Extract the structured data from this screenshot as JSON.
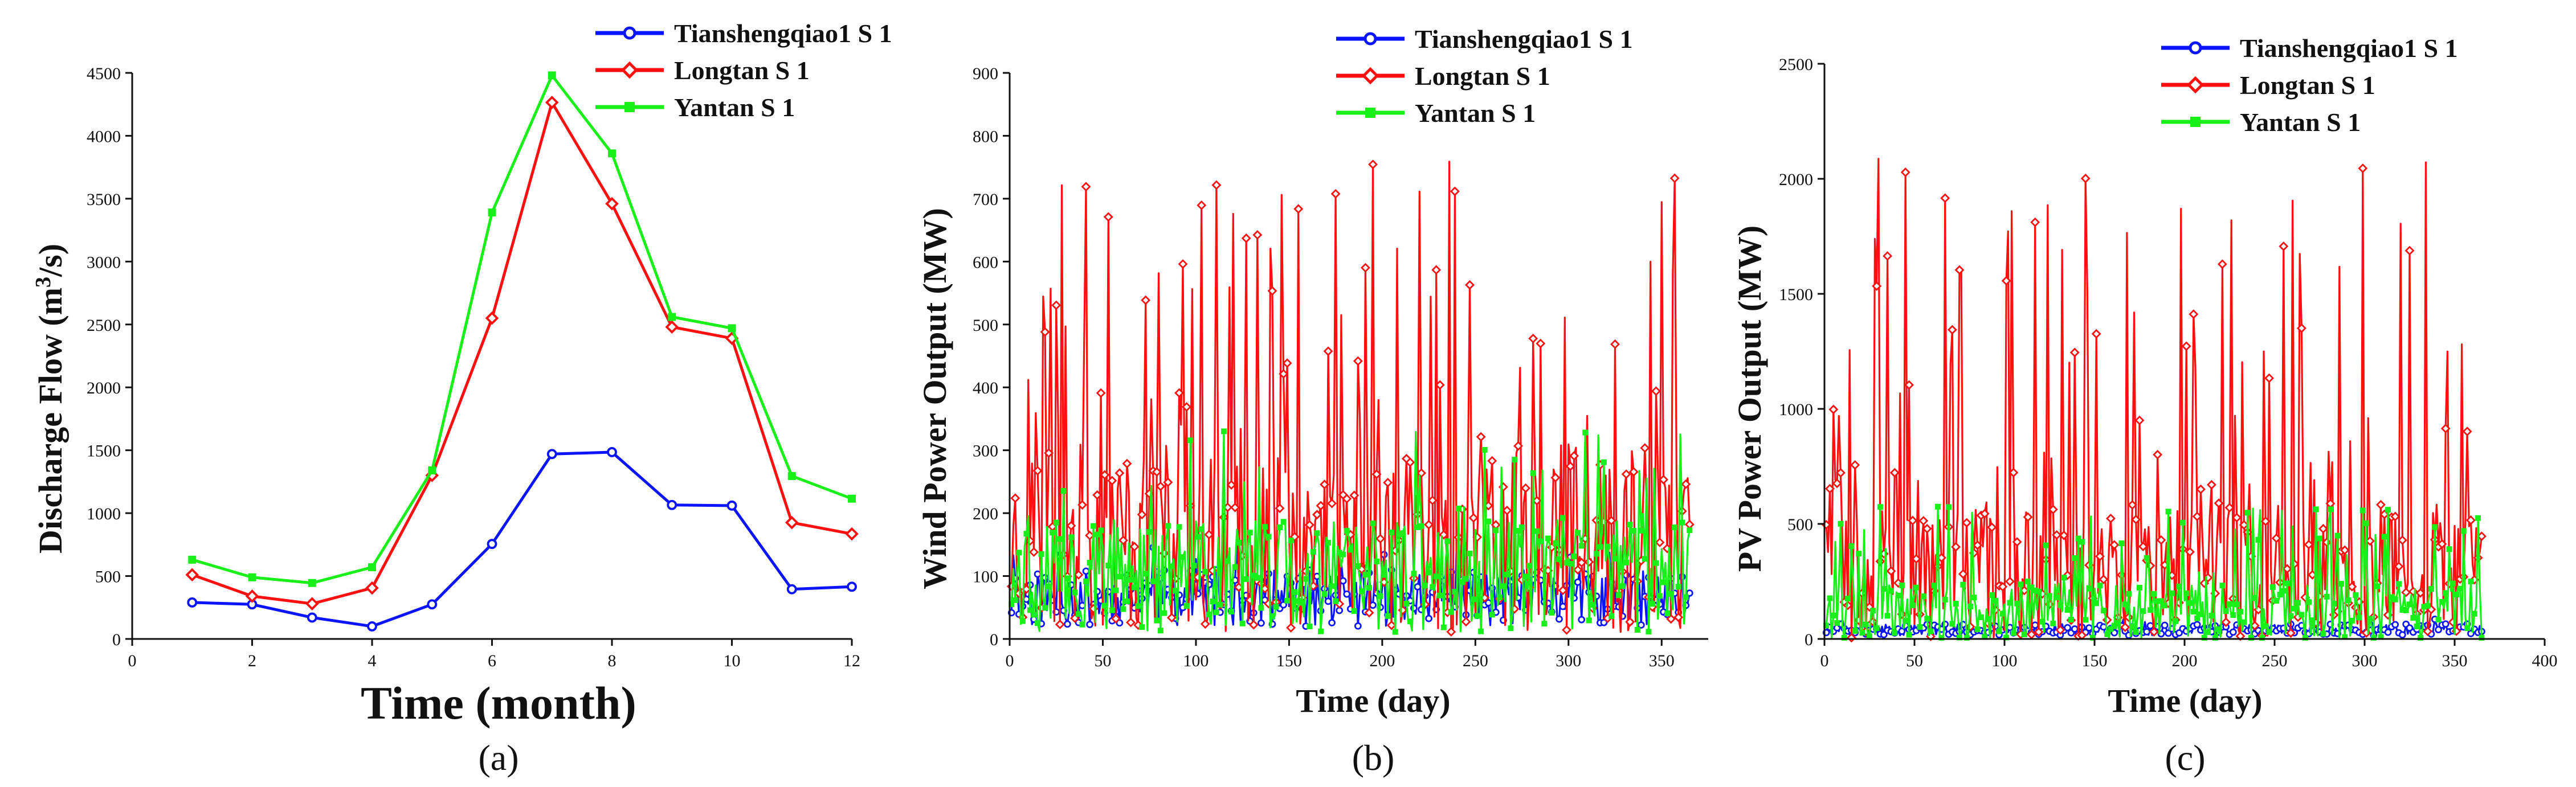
{
  "colors": {
    "tianshengqiao": "#0a14ff",
    "longtan": "#ff0f0f",
    "yantan": "#19f019",
    "axis": "#111111"
  },
  "chart_data": [
    {
      "type": "line",
      "panel_label": "(a)",
      "xlabel": "Time (month)",
      "ylabel_main": "Discharge Flow (m",
      "ylabel_sup": "3",
      "ylabel_end": "/s)",
      "xlim": [
        0,
        12
      ],
      "ylim": [
        0,
        4500
      ],
      "xticks": [
        0,
        2,
        4,
        6,
        8,
        10,
        12
      ],
      "yticks": [
        0,
        500,
        1000,
        1500,
        2000,
        2500,
        3000,
        3500,
        4000,
        4500
      ],
      "x": [
        1,
        2,
        3,
        4,
        5,
        6,
        7,
        8,
        9,
        10,
        11,
        12
      ],
      "series": [
        {
          "name": "Tianshengqiao1 S 1",
          "color": "#0a14ff",
          "marker": "circle",
          "values": [
            290,
            275,
            170,
            100,
            275,
            755,
            1470,
            1485,
            1065,
            1060,
            395,
            415
          ]
        },
        {
          "name": "Longtan S 1",
          "color": "#ff0f0f",
          "marker": "diamond",
          "values": [
            510,
            340,
            280,
            405,
            1300,
            2550,
            4265,
            3460,
            2480,
            2390,
            925,
            835
          ]
        },
        {
          "name": "Yantan S 1",
          "color": "#19f019",
          "marker": "square",
          "values": [
            630,
            490,
            445,
            570,
            1340,
            3390,
            4480,
            3860,
            2560,
            2470,
            1295,
            1115
          ]
        }
      ]
    },
    {
      "type": "line",
      "panel_label": "(b)",
      "xlabel": "Time (day)",
      "ylabel": "Wind Power Output (MW)",
      "xlim": [
        0,
        375
      ],
      "ylim": [
        0,
        900
      ],
      "xticks": [
        0,
        50,
        100,
        150,
        200,
        250,
        300,
        350
      ],
      "yticks": [
        0,
        100,
        200,
        300,
        400,
        500,
        600,
        700,
        800,
        900
      ],
      "days": 365,
      "series": [
        {
          "name": "Tianshengqiao1 S 1",
          "color": "#0a14ff",
          "marker": "circle",
          "base": 65,
          "spread": 45,
          "peak_prob": 0.08,
          "peak": 160,
          "seed": 11
        },
        {
          "name": "Longtan S 1",
          "color": "#ff0f0f",
          "marker": "diamond",
          "base": 160,
          "spread": 150,
          "peak_prob": 0.22,
          "peak": 760,
          "seed": 23
        },
        {
          "name": "Yantan S 1",
          "color": "#19f019",
          "marker": "square",
          "base": 100,
          "spread": 90,
          "peak_prob": 0.12,
          "peak": 360,
          "seed": 37
        }
      ]
    },
    {
      "type": "line",
      "panel_label": "(c)",
      "xlabel": "Time (day)",
      "ylabel": "PV Power Output (MW)",
      "xlim": [
        0,
        400
      ],
      "ylim": [
        0,
        2500
      ],
      "xticks": [
        0,
        50,
        100,
        150,
        200,
        250,
        300,
        350,
        400
      ],
      "yticks": [
        0,
        500,
        1000,
        1500,
        2000,
        2500
      ],
      "days": 365,
      "series": [
        {
          "name": "Tianshengqiao1 S 1",
          "color": "#0a14ff",
          "marker": "circle",
          "base": 40,
          "spread": 25,
          "peak_prob": 0.03,
          "peak": 90,
          "seed": 41
        },
        {
          "name": "Longtan S 1",
          "color": "#ff0f0f",
          "marker": "diamond",
          "base": 300,
          "spread": 300,
          "peak_prob": 0.25,
          "peak": 2100,
          "seed": 53
        },
        {
          "name": "Yantan S 1",
          "color": "#19f019",
          "marker": "square",
          "base": 120,
          "spread": 130,
          "peak_prob": 0.15,
          "peak": 580,
          "seed": 67
        }
      ]
    }
  ]
}
